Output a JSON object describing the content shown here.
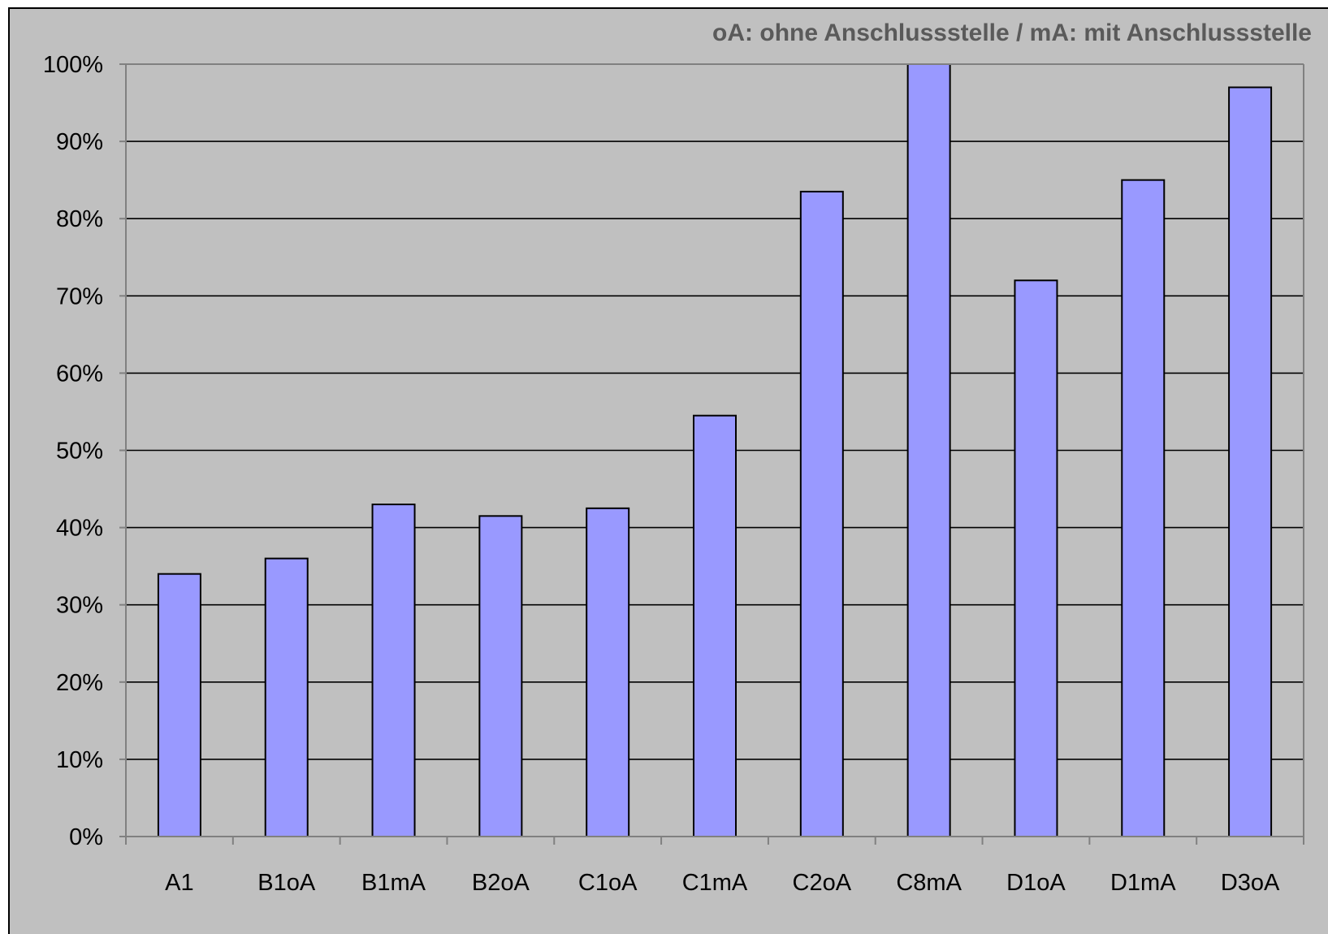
{
  "chart_data": {
    "type": "bar",
    "annotation": "oA: ohne Anschlussstelle / mA: mit Anschlussstelle",
    "categories": [
      "A1",
      "B1oA",
      "B1mA",
      "B2oA",
      "C1oA",
      "C1mA",
      "C2oA",
      "C8mA",
      "D1oA",
      "D1mA",
      "D3oA"
    ],
    "values": [
      34,
      36,
      43,
      41.5,
      42.5,
      54.5,
      83.5,
      100,
      72,
      85,
      97
    ],
    "value_unit": "%",
    "ylim": [
      0,
      100
    ],
    "yticks": [
      0,
      10,
      20,
      30,
      40,
      50,
      60,
      70,
      80,
      90,
      100
    ],
    "ytick_labels": [
      "0%",
      "10%",
      "20%",
      "30%",
      "40%",
      "50%",
      "60%",
      "70%",
      "80%",
      "90%",
      "100%"
    ],
    "grid": true,
    "bar_color": "#9999ff",
    "background_color": "#c0c0c0"
  }
}
